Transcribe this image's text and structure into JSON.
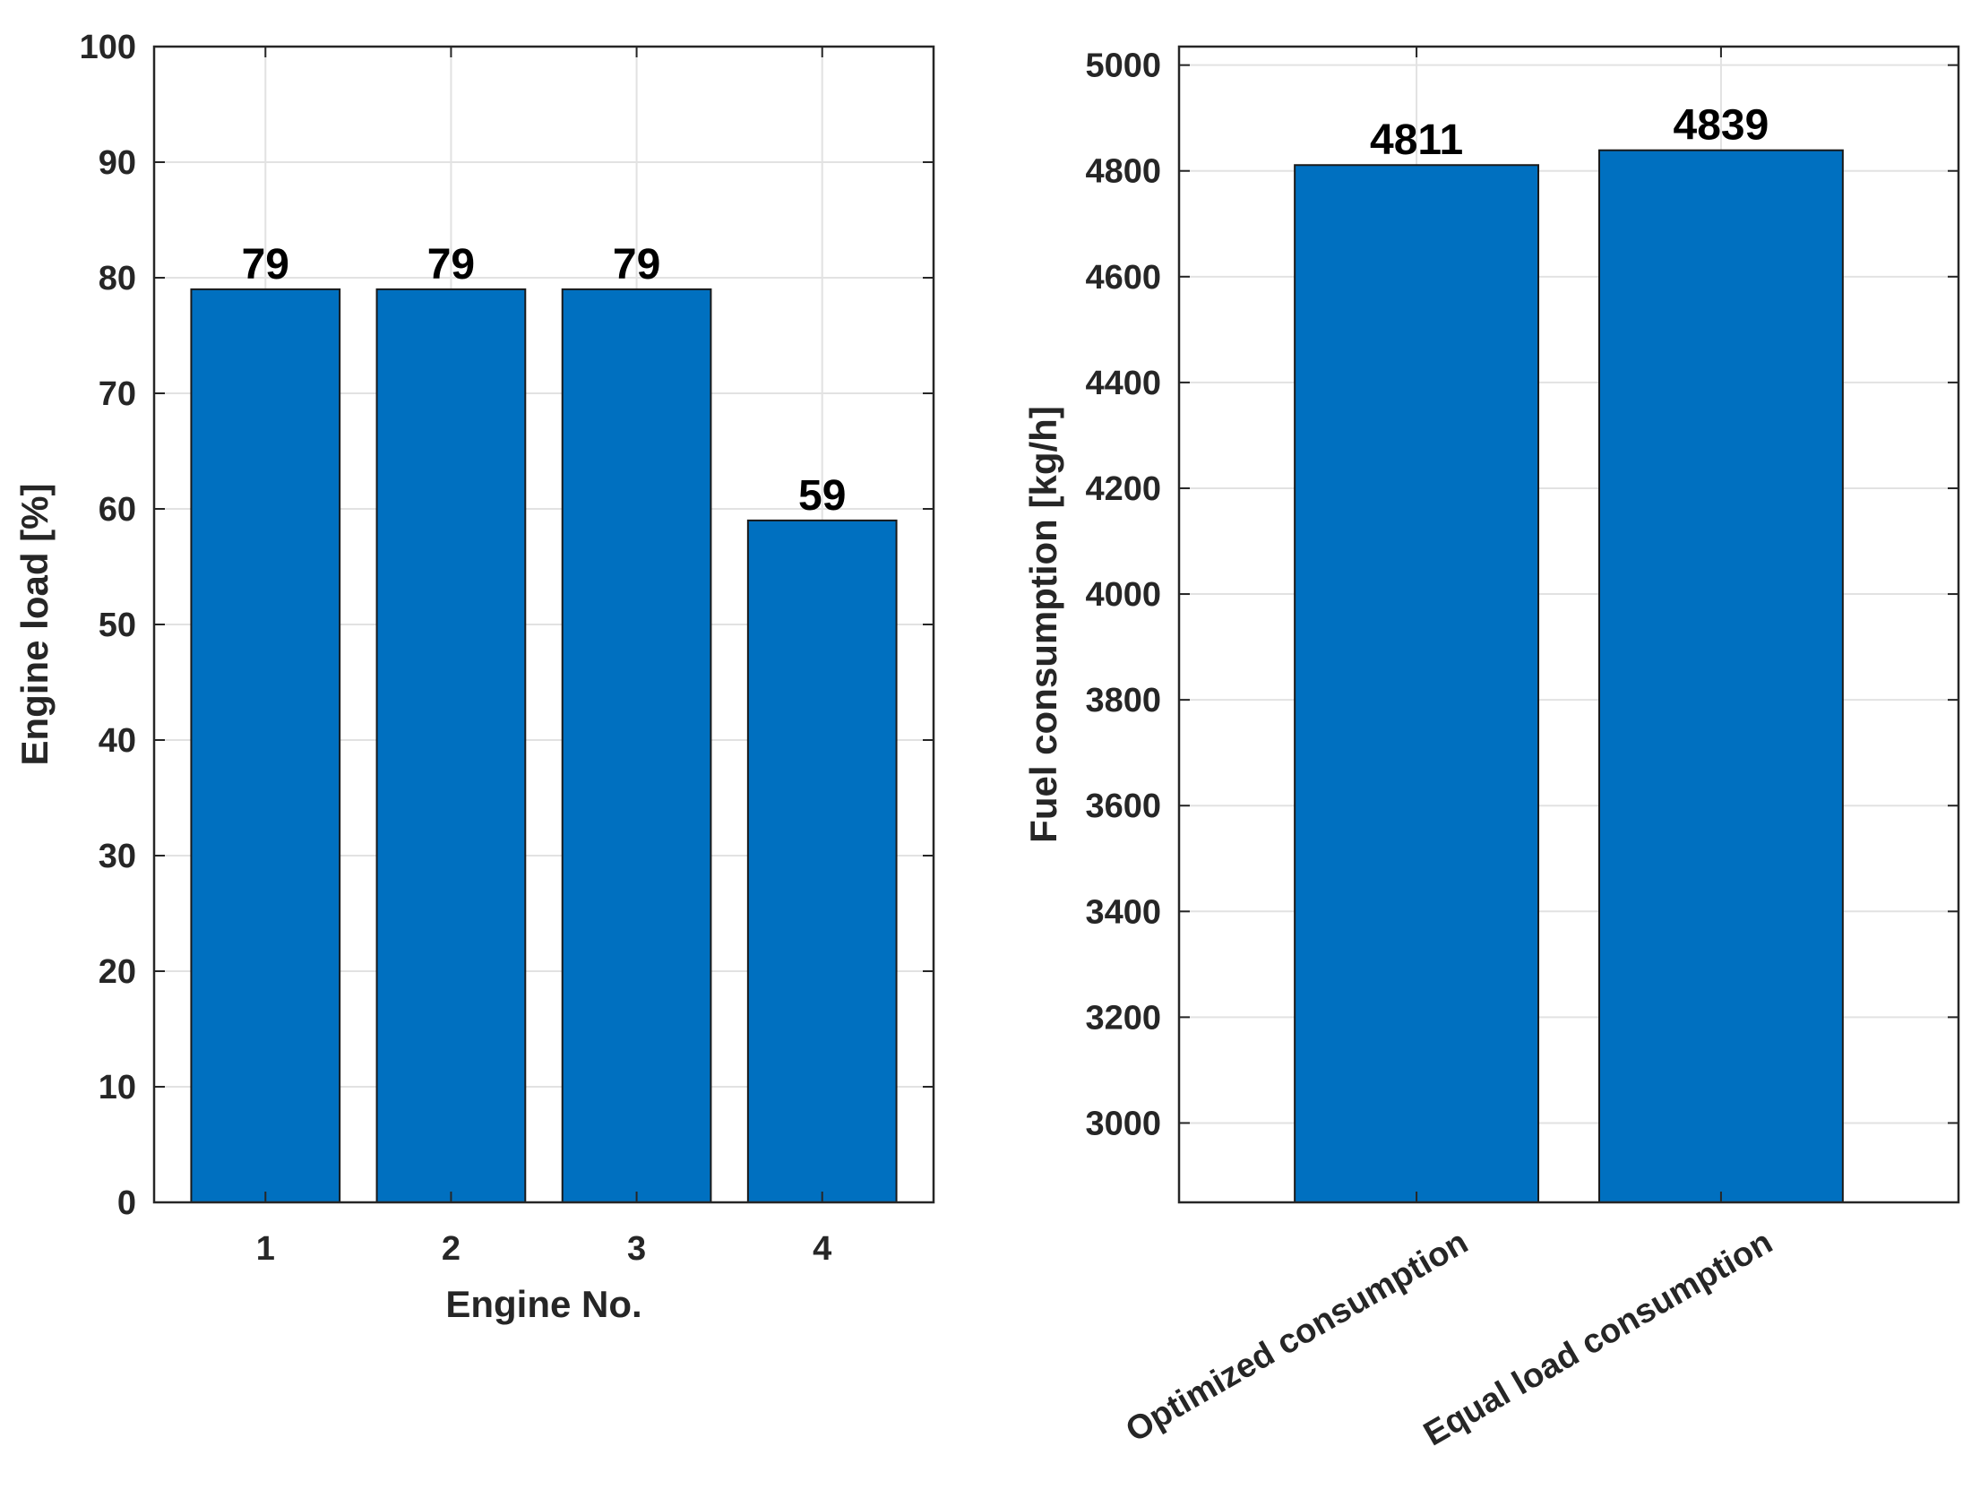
{
  "colors": {
    "bar": "#0070C0",
    "grid": "#e2e2e2",
    "axis": "#262626"
  },
  "chart_data": [
    {
      "type": "bar",
      "title": "",
      "xlabel": "Engine No.",
      "ylabel": "Engine load [%]",
      "categories": [
        "1",
        "2",
        "3",
        "4"
      ],
      "values": [
        79,
        79,
        79,
        59
      ],
      "data_labels": [
        "79",
        "79",
        "79",
        "59"
      ],
      "ylim": [
        0,
        100
      ],
      "yticks": [
        0,
        10,
        20,
        30,
        40,
        50,
        60,
        70,
        80,
        90,
        100
      ],
      "grid": true,
      "legend": "none"
    },
    {
      "type": "bar",
      "title": "",
      "xlabel": "",
      "ylabel": "Fuel consumption [kg/h]",
      "categories": [
        "Optimized consumption",
        "Equal load consumption"
      ],
      "values": [
        4811,
        4839
      ],
      "data_labels": [
        "4811",
        "4839"
      ],
      "ylim": [
        2850,
        5035
      ],
      "yticks": [
        3000,
        3200,
        3400,
        3600,
        3800,
        4000,
        4200,
        4400,
        4600,
        4800,
        5000
      ],
      "grid": true,
      "legend": "none"
    }
  ]
}
